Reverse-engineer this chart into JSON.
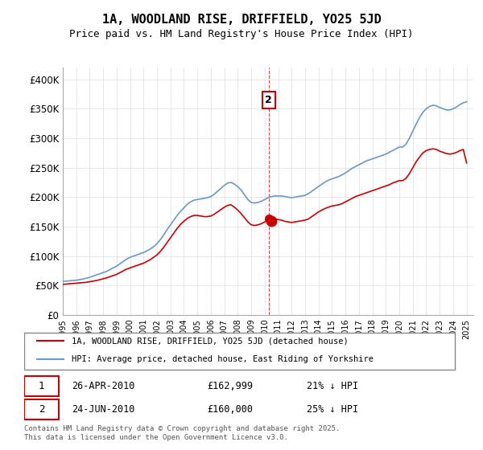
{
  "title": "1A, WOODLAND RISE, DRIFFIELD, YO25 5JD",
  "subtitle": "Price paid vs. HM Land Registry's House Price Index (HPI)",
  "ylabel_ticks": [
    "£0",
    "£50K",
    "£100K",
    "£150K",
    "£200K",
    "£250K",
    "£300K",
    "£350K",
    "£400K"
  ],
  "ytick_values": [
    0,
    50000,
    100000,
    150000,
    200000,
    250000,
    300000,
    350000,
    400000
  ],
  "ylim": [
    0,
    420000
  ],
  "xlim_start": 1995.0,
  "xlim_end": 2025.5,
  "background_color": "#ffffff",
  "grid_color": "#dddddd",
  "hpi_color": "#6699cc",
  "property_color": "#cc0000",
  "transaction1_date": "26-APR-2010",
  "transaction1_price": 162999,
  "transaction1_label": "1",
  "transaction1_pct": "21% ↓ HPI",
  "transaction2_date": "24-JUN-2010",
  "transaction2_price": 160000,
  "transaction2_label": "2",
  "transaction2_pct": "25% ↓ HPI",
  "transaction_x": 2010.3,
  "legend_line1": "1A, WOODLAND RISE, DRIFFIELD, YO25 5JD (detached house)",
  "legend_line2": "HPI: Average price, detached house, East Riding of Yorkshire",
  "footer": "Contains HM Land Registry data © Crown copyright and database right 2025.\nThis data is licensed under the Open Government Licence v3.0.",
  "hpi_data_x": [
    1995.0,
    1995.25,
    1995.5,
    1995.75,
    1996.0,
    1996.25,
    1996.5,
    1996.75,
    1997.0,
    1997.25,
    1997.5,
    1997.75,
    1998.0,
    1998.25,
    1998.5,
    1998.75,
    1999.0,
    1999.25,
    1999.5,
    1999.75,
    2000.0,
    2000.25,
    2000.5,
    2000.75,
    2001.0,
    2001.25,
    2001.5,
    2001.75,
    2002.0,
    2002.25,
    2002.5,
    2002.75,
    2003.0,
    2003.25,
    2003.5,
    2003.75,
    2004.0,
    2004.25,
    2004.5,
    2004.75,
    2005.0,
    2005.25,
    2005.5,
    2005.75,
    2006.0,
    2006.25,
    2006.5,
    2006.75,
    2007.0,
    2007.25,
    2007.5,
    2007.75,
    2008.0,
    2008.25,
    2008.5,
    2008.75,
    2009.0,
    2009.25,
    2009.5,
    2009.75,
    2010.0,
    2010.25,
    2010.5,
    2010.75,
    2011.0,
    2011.25,
    2011.5,
    2011.75,
    2012.0,
    2012.25,
    2012.5,
    2012.75,
    2013.0,
    2013.25,
    2013.5,
    2013.75,
    2014.0,
    2014.25,
    2014.5,
    2014.75,
    2015.0,
    2015.25,
    2015.5,
    2015.75,
    2016.0,
    2016.25,
    2016.5,
    2016.75,
    2017.0,
    2017.25,
    2017.5,
    2017.75,
    2018.0,
    2018.25,
    2018.5,
    2018.75,
    2019.0,
    2019.25,
    2019.5,
    2019.75,
    2020.0,
    2020.25,
    2020.5,
    2020.75,
    2021.0,
    2021.25,
    2021.5,
    2021.75,
    2022.0,
    2022.25,
    2022.5,
    2022.75,
    2023.0,
    2023.25,
    2023.5,
    2023.75,
    2024.0,
    2024.25,
    2024.5,
    2024.75,
    2025.0
  ],
  "hpi_data_y": [
    57000,
    57500,
    58000,
    58500,
    59000,
    60000,
    61000,
    62500,
    64000,
    66000,
    68000,
    70000,
    72000,
    74000,
    77000,
    80000,
    83000,
    87000,
    91000,
    95000,
    98000,
    100000,
    102000,
    104000,
    106000,
    109000,
    112000,
    116000,
    121000,
    128000,
    136000,
    145000,
    153000,
    161000,
    169000,
    176000,
    182000,
    188000,
    192000,
    195000,
    196000,
    197000,
    198000,
    199000,
    201000,
    205000,
    210000,
    215000,
    220000,
    224000,
    225000,
    222000,
    218000,
    212000,
    204000,
    196000,
    191000,
    190000,
    191000,
    193000,
    196000,
    199000,
    201000,
    202000,
    202000,
    202000,
    201000,
    200000,
    199000,
    200000,
    201000,
    202000,
    203000,
    206000,
    210000,
    214000,
    218000,
    222000,
    226000,
    229000,
    231000,
    233000,
    235000,
    238000,
    241000,
    245000,
    249000,
    252000,
    255000,
    258000,
    261000,
    263000,
    265000,
    267000,
    269000,
    271000,
    273000,
    276000,
    279000,
    282000,
    285000,
    285000,
    290000,
    300000,
    312000,
    324000,
    335000,
    344000,
    350000,
    354000,
    356000,
    355000,
    352000,
    350000,
    348000,
    348000,
    350000,
    353000,
    357000,
    360000,
    362000
  ],
  "property_data_x": [
    1995.0,
    1995.25,
    1995.5,
    1995.75,
    1996.0,
    1996.25,
    1996.5,
    1996.75,
    1997.0,
    1997.25,
    1997.5,
    1997.75,
    1998.0,
    1998.25,
    1998.5,
    1998.75,
    1999.0,
    1999.25,
    1999.5,
    1999.75,
    2000.0,
    2000.25,
    2000.5,
    2000.75,
    2001.0,
    2001.25,
    2001.5,
    2001.75,
    2002.0,
    2002.25,
    2002.5,
    2002.75,
    2003.0,
    2003.25,
    2003.5,
    2003.75,
    2004.0,
    2004.25,
    2004.5,
    2004.75,
    2005.0,
    2005.25,
    2005.5,
    2005.75,
    2006.0,
    2006.25,
    2006.5,
    2006.75,
    2007.0,
    2007.25,
    2007.5,
    2007.75,
    2008.0,
    2008.25,
    2008.5,
    2008.75,
    2009.0,
    2009.25,
    2009.5,
    2009.75,
    2010.0,
    2010.25,
    2010.5,
    2010.75,
    2011.0,
    2011.25,
    2011.5,
    2011.75,
    2012.0,
    2012.25,
    2012.5,
    2012.75,
    2013.0,
    2013.25,
    2013.5,
    2013.75,
    2014.0,
    2014.25,
    2014.5,
    2014.75,
    2015.0,
    2015.25,
    2015.5,
    2015.75,
    2016.0,
    2016.25,
    2016.5,
    2016.75,
    2017.0,
    2017.25,
    2017.5,
    2017.75,
    2018.0,
    2018.25,
    2018.5,
    2018.75,
    2019.0,
    2019.25,
    2019.5,
    2019.75,
    2020.0,
    2020.25,
    2020.5,
    2020.75,
    2021.0,
    2021.25,
    2021.5,
    2021.75,
    2022.0,
    2022.25,
    2022.5,
    2022.75,
    2023.0,
    2023.25,
    2023.5,
    2023.75,
    2024.0,
    2024.25,
    2024.5,
    2024.75,
    2025.0
  ],
  "property_data_y": [
    52000,
    52500,
    53000,
    53500,
    54000,
    54500,
    55000,
    55500,
    56500,
    57500,
    58500,
    60000,
    61500,
    63000,
    65000,
    67000,
    69000,
    72000,
    75000,
    78000,
    80000,
    82000,
    84000,
    86000,
    88000,
    91000,
    94000,
    98000,
    102000,
    108000,
    115000,
    123000,
    131000,
    139000,
    147000,
    154000,
    159000,
    164000,
    167000,
    169000,
    169000,
    168000,
    167000,
    167000,
    168000,
    171000,
    175000,
    179000,
    183000,
    186000,
    187000,
    183000,
    178000,
    172000,
    165000,
    158000,
    153000,
    152000,
    153000,
    155000,
    158000,
    161000,
    162999,
    162999,
    162000,
    161000,
    159000,
    158000,
    157000,
    158000,
    159000,
    160000,
    161000,
    163000,
    167000,
    171000,
    175000,
    178000,
    181000,
    183000,
    185000,
    186000,
    187000,
    189000,
    192000,
    195000,
    198000,
    201000,
    203000,
    205000,
    207000,
    209000,
    211000,
    213000,
    215000,
    217000,
    219000,
    221000,
    224000,
    226000,
    228000,
    228000,
    232000,
    240000,
    250000,
    260000,
    268000,
    275000,
    279000,
    281000,
    282000,
    281000,
    278000,
    276000,
    274000,
    273000,
    274000,
    276000,
    279000,
    281000,
    258000
  ]
}
